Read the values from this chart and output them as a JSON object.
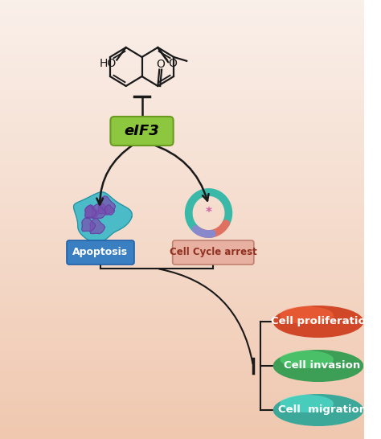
{
  "bg_gradient_top": "#faf0ea",
  "bg_gradient_bottom": "#f0c8b0",
  "eif3_box_color": "#8dc63f",
  "eif3_box_edge": "#6a9a20",
  "eif3_text": "eIF3",
  "apoptosis_box_color": "#3a7fc1",
  "apoptosis_box_edge": "#2060a8",
  "apoptosis_text": "Apoptosis",
  "cell_cycle_box_color": "#e8b0a0",
  "cell_cycle_box_edge": "#c08070",
  "cell_cycle_text": "Cell Cycle arrest",
  "cell_cycle_text_color": "#903020",
  "proliferation_text": "Cell proliferation",
  "invasion_text": "Cell invasion",
  "migration_text": "Cell  migration",
  "oval_colors": [
    "#d04828",
    "#3d9e55",
    "#3ba89a"
  ],
  "arrow_color": "#1a1a1a",
  "struct_color": "#1a1a1a"
}
